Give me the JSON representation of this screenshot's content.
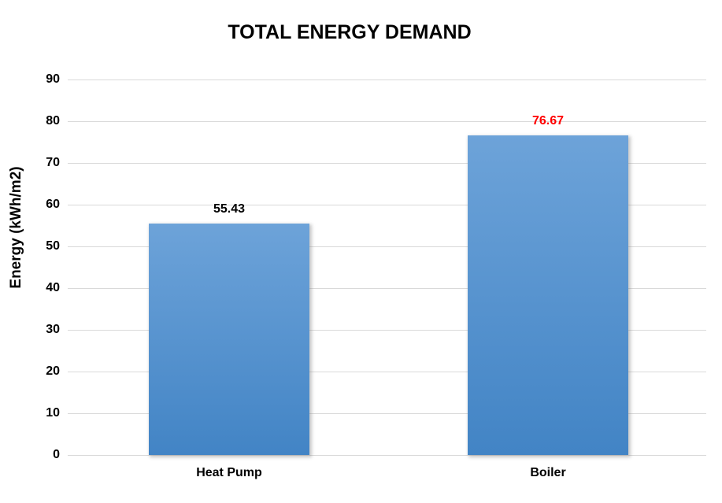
{
  "chart_data": {
    "type": "bar",
    "title": "TOTAL ENERGY DEMAND",
    "xlabel": "",
    "ylabel": "Energy (kWh/m2)",
    "categories": [
      "Heat Pump",
      "Boiler"
    ],
    "values": [
      55.43,
      76.67
    ],
    "value_labels": [
      "55.43",
      "76.67"
    ],
    "value_label_colors": [
      "#000000",
      "#FF0000"
    ],
    "ylim": [
      0,
      90
    ],
    "yticks": [
      0,
      10,
      20,
      30,
      40,
      50,
      60,
      70,
      80,
      90
    ],
    "grid": true,
    "legend": false,
    "colors": {
      "bar_gradient_top": "#6DA3D9",
      "bar_gradient_bottom": "#4284C5",
      "gridline": "#D9D9D9",
      "text": "#000000"
    }
  }
}
